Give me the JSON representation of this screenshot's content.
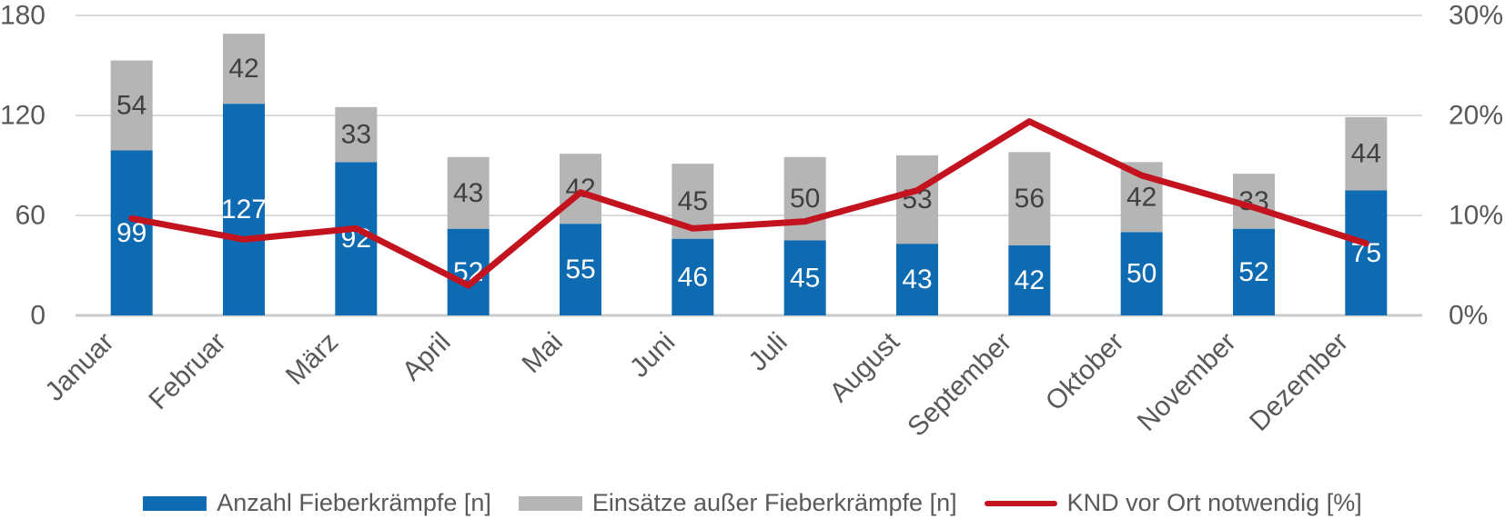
{
  "chart_data": {
    "type": "combo-stacked-bar-line",
    "title": "",
    "categories": [
      "Januar",
      "Februar",
      "März",
      "April",
      "Mai",
      "Juni",
      "Juli",
      "August",
      "September",
      "Oktober",
      "November",
      "Dezember"
    ],
    "series": [
      {
        "name": "Anzahl Fieberkrämpfe [n]",
        "type": "bar",
        "axis": "left",
        "color": "#0E6BB2",
        "label_color": "#FFFFFF",
        "values": [
          99,
          127,
          92,
          52,
          55,
          46,
          45,
          43,
          42,
          50,
          52,
          75
        ]
      },
      {
        "name": "Einsätze außer Fieberkrämpfe [n]",
        "type": "bar",
        "axis": "left",
        "color": "#B5B5B5",
        "label_color": "#404040",
        "values": [
          54,
          42,
          33,
          43,
          42,
          45,
          50,
          53,
          56,
          42,
          33,
          44
        ]
      },
      {
        "name": "KND vor Ort notwendig [%]",
        "type": "line",
        "axis": "right",
        "color": "#C2131F",
        "values": [
          9.7,
          7.6,
          8.7,
          3.0,
          12.3,
          8.7,
          9.4,
          12.5,
          19.4,
          14.0,
          10.8,
          7.2
        ]
      }
    ],
    "left_axis": {
      "min": 0,
      "max": 180,
      "ticks": [
        180,
        120,
        60,
        0
      ],
      "tick_labels": [
        "180",
        "120",
        "60",
        "0"
      ]
    },
    "right_axis": {
      "min": 0,
      "max": 30,
      "ticks": [
        30,
        20,
        10,
        0
      ],
      "tick_labels": [
        "30%",
        "20%",
        "10%",
        "0%"
      ]
    },
    "grid": true,
    "legend_position": "bottom",
    "bar_mode": "stacked"
  },
  "colors": {
    "background": "#FFFFFF",
    "grid_line": "#D9D9D9",
    "axis_line": "#C9CCCD",
    "axis_text": "#595959",
    "category_text": "#595959",
    "legend_text": "#595959"
  }
}
